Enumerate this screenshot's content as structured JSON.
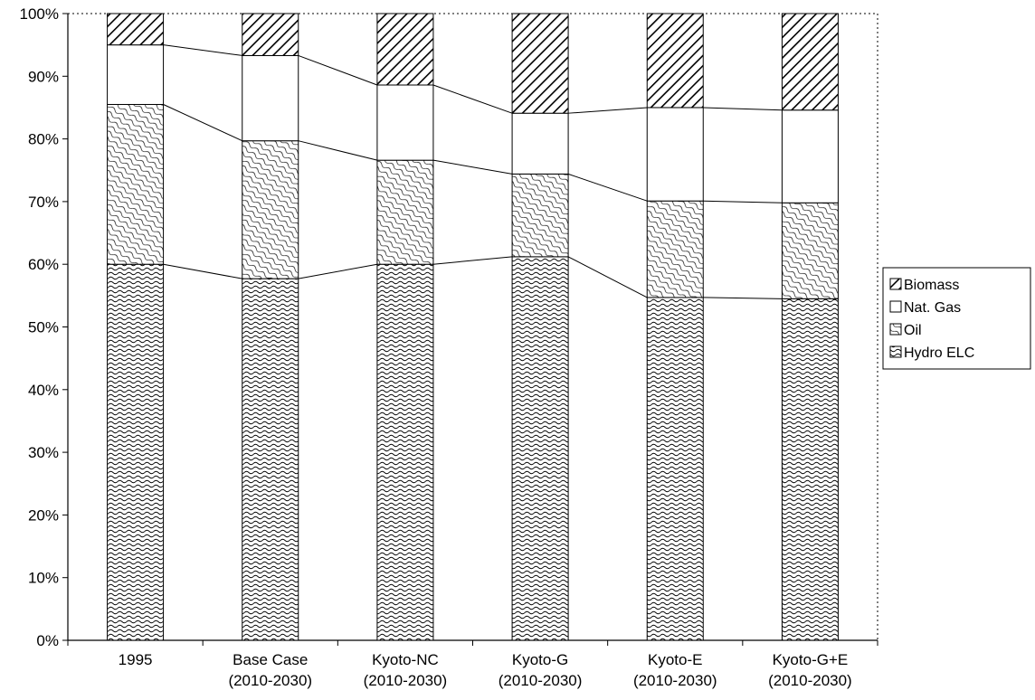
{
  "chart_data": {
    "type": "bar",
    "stacked": "100%",
    "categories": [
      [
        "1995"
      ],
      [
        "Base Case",
        "(2010-2030)"
      ],
      [
        "Kyoto-NC",
        "(2010-2030)"
      ],
      [
        "Kyoto-G",
        "(2010-2030)"
      ],
      [
        "Kyoto-E",
        "(2010-2030)"
      ],
      [
        "Kyoto-G+E",
        "(2010-2030)"
      ]
    ],
    "series": [
      {
        "name": "Hydro ELC",
        "values": [
          60,
          57.7,
          60,
          61.2,
          54.7,
          54.5
        ],
        "pattern": "wave"
      },
      {
        "name": "Oil",
        "values": [
          25.5,
          22,
          16.6,
          13.2,
          15.4,
          15.3
        ],
        "pattern": "wave-light"
      },
      {
        "name": "Nat. Gas",
        "values": [
          9.5,
          13.6,
          12,
          9.7,
          14.9,
          14.8
        ],
        "pattern": "none"
      },
      {
        "name": "Biomass",
        "values": [
          5,
          6.7,
          11.4,
          15.9,
          15,
          15.4
        ],
        "pattern": "diagonal"
      }
    ],
    "legend_order": [
      "Biomass",
      "Nat. Gas",
      "Oil",
      "Hydro ELC"
    ],
    "yticks": [
      "0%",
      "10%",
      "20%",
      "30%",
      "40%",
      "50%",
      "60%",
      "70%",
      "80%",
      "90%",
      "100%"
    ],
    "ylim": [
      0,
      100
    ],
    "legend_position": "right",
    "series_lines": true,
    "grid": false
  }
}
